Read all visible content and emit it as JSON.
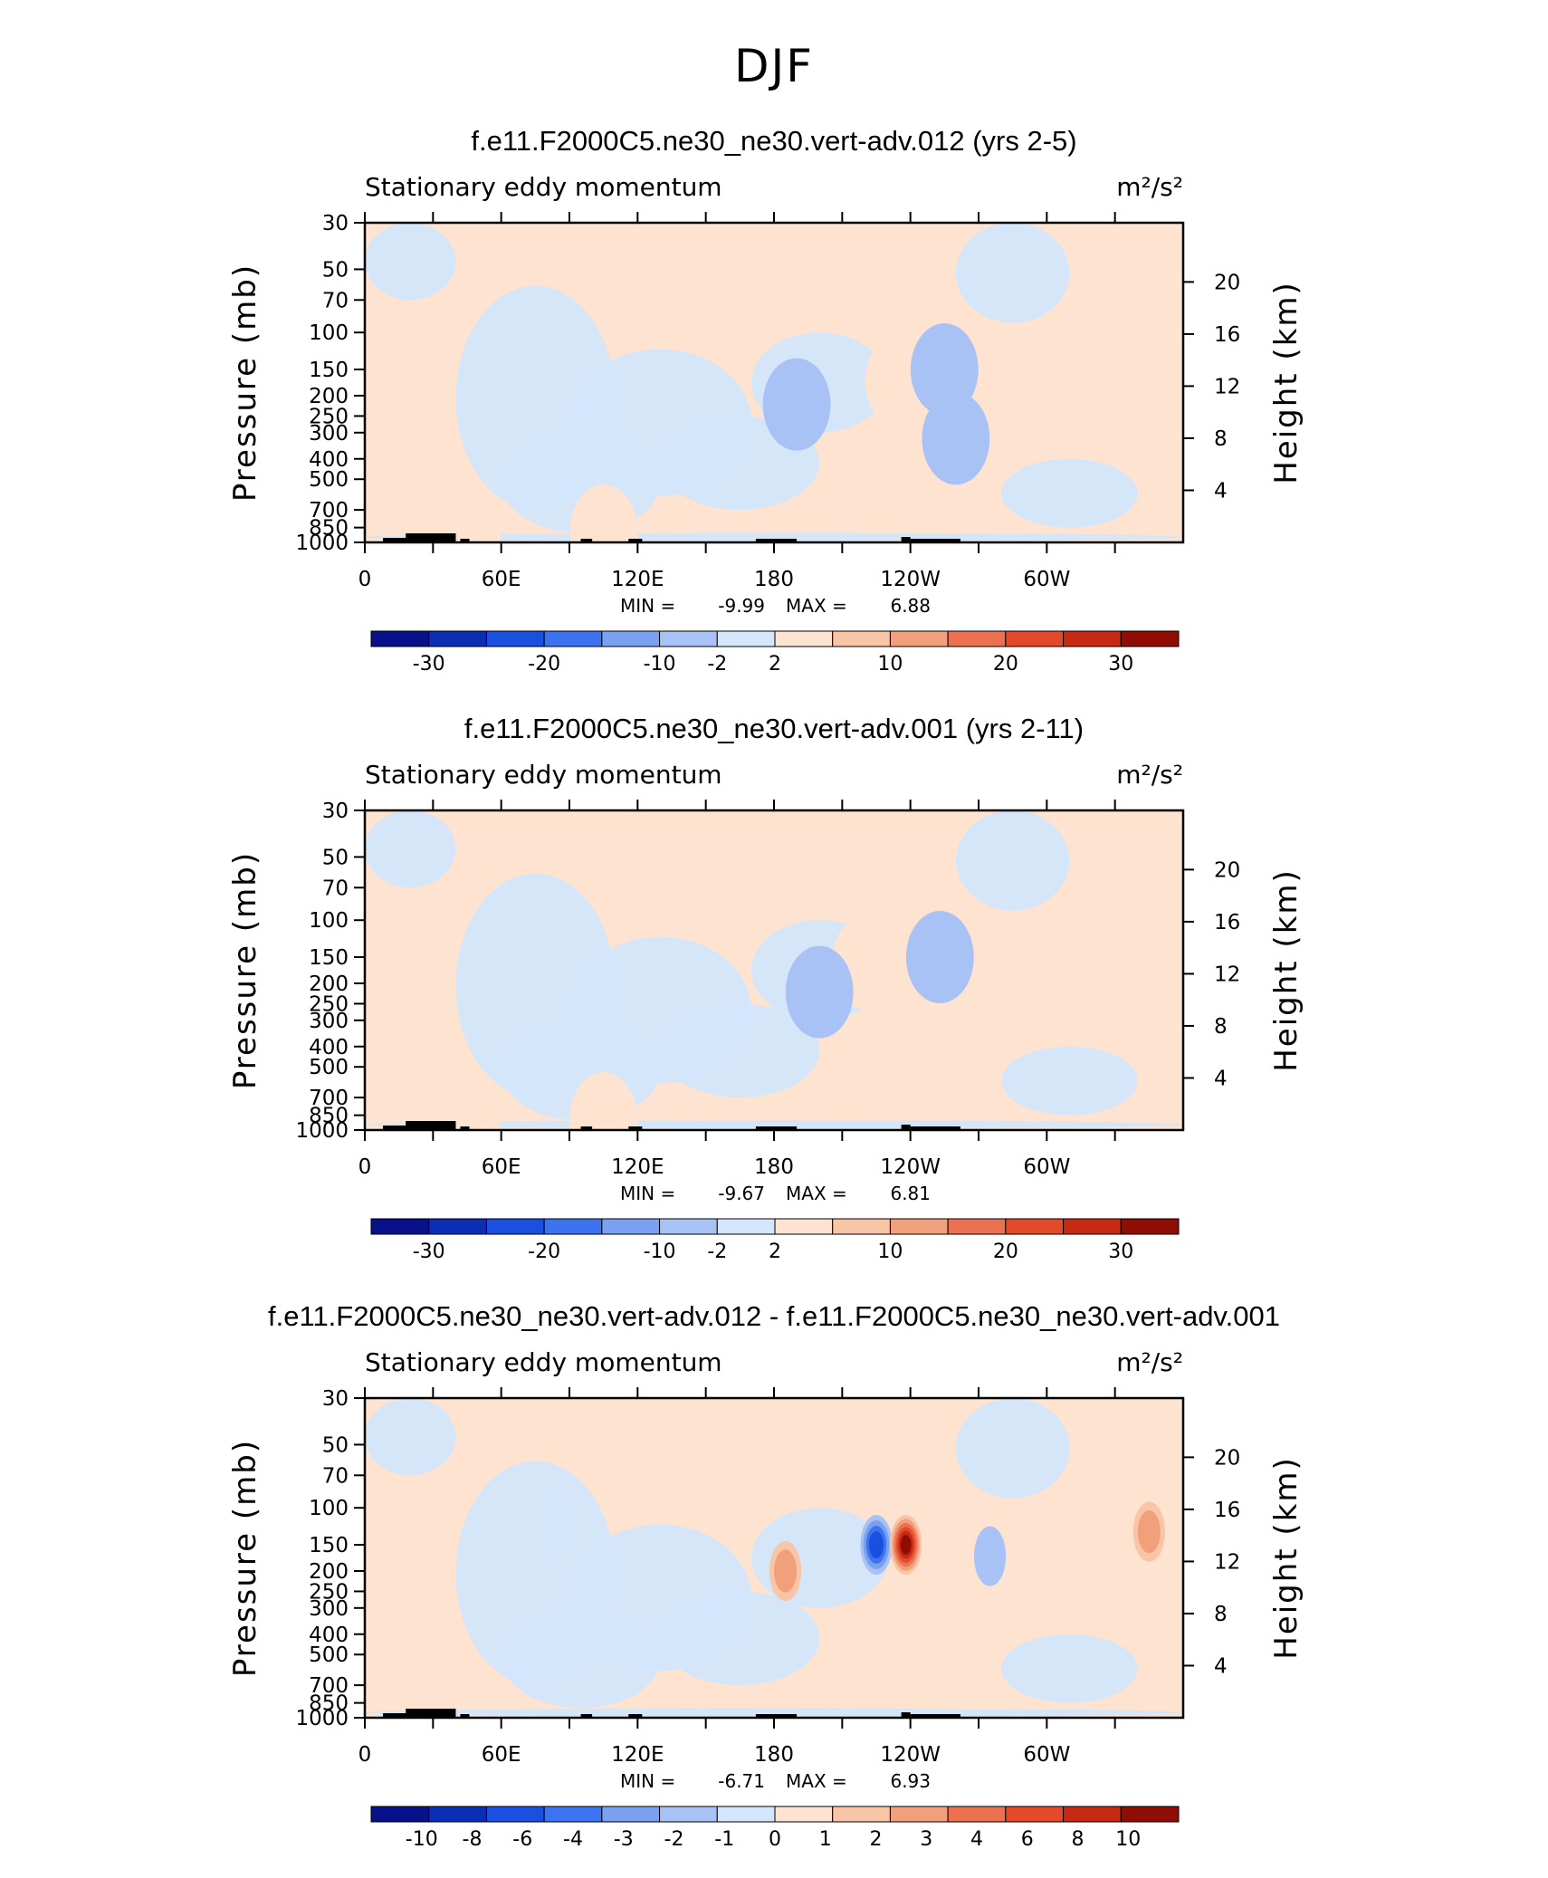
{
  "figure": {
    "main_title": "DJF"
  },
  "chart_data": [
    {
      "type": "heatmap",
      "title": "f.e11.F2000C5.ne30_ne30.vert-adv.012 (yrs 2-5)",
      "subtitle_left": "Stationary eddy momentum",
      "units": "m²/s²",
      "ylabel": "Pressure (mb)",
      "y2label": "Height (km)",
      "x_ticks": [
        "0",
        "60E",
        "120E",
        "180",
        "120W",
        "60W"
      ],
      "y_ticks": [
        "30",
        "50",
        "70",
        "100",
        "150",
        "200",
        "250",
        "300",
        "400",
        "500",
        "700",
        "850",
        "1000"
      ],
      "y2_ticks": [
        "20",
        "16",
        "12",
        "8",
        "4"
      ],
      "stats": {
        "min_label": "MIN =",
        "min": "-9.99",
        "max_label": "MAX =",
        "max": "6.88"
      },
      "colorbar_levels": [
        "-30",
        "-20",
        "-10",
        "-2",
        "2",
        "10",
        "20",
        "30"
      ],
      "features": [
        {
          "lon": 15,
          "p": 180,
          "value": 5
        },
        {
          "lon": 235,
          "p": 170,
          "value": 4
        },
        {
          "lon": 255,
          "p": 150,
          "value": -9
        },
        {
          "lon": 345,
          "p": 160,
          "value": 3
        },
        {
          "lon": 260,
          "p": 320,
          "value": -2
        },
        {
          "lon": 190,
          "p": 220,
          "value": -2
        },
        {
          "lon": 45,
          "p": 850,
          "value": 3
        },
        {
          "lon": 105,
          "p": 880,
          "value": 3
        }
      ]
    },
    {
      "type": "heatmap",
      "title": "f.e11.F2000C5.ne30_ne30.vert-adv.001 (yrs 2-11)",
      "subtitle_left": "Stationary eddy momentum",
      "units": "m²/s²",
      "ylabel": "Pressure (mb)",
      "y2label": "Height (km)",
      "x_ticks": [
        "0",
        "60E",
        "120E",
        "180",
        "120W",
        "60W"
      ],
      "y_ticks": [
        "30",
        "50",
        "70",
        "100",
        "150",
        "200",
        "250",
        "300",
        "400",
        "500",
        "700",
        "850",
        "1000"
      ],
      "y2_ticks": [
        "20",
        "16",
        "12",
        "8",
        "4"
      ],
      "stats": {
        "min_label": "MIN =",
        "min": "-9.67",
        "max_label": "MAX =",
        "max": "6.81"
      },
      "colorbar_levels": [
        "-30",
        "-20",
        "-10",
        "-2",
        "2",
        "10",
        "20",
        "30"
      ],
      "features": [
        {
          "lon": 12,
          "p": 190,
          "value": 5
        },
        {
          "lon": 220,
          "p": 160,
          "value": 4
        },
        {
          "lon": 253,
          "p": 150,
          "value": -8
        },
        {
          "lon": 345,
          "p": 130,
          "value": 3
        },
        {
          "lon": 200,
          "p": 220,
          "value": -3
        },
        {
          "lon": 45,
          "p": 820,
          "value": 3
        },
        {
          "lon": 105,
          "p": 880,
          "value": 3
        }
      ]
    },
    {
      "type": "heatmap",
      "title": "f.e11.F2000C5.ne30_ne30.vert-adv.012 - f.e11.F2000C5.ne30_ne30.vert-adv.001",
      "subtitle_left": "Stationary eddy momentum",
      "units": "m²/s²",
      "ylabel": "Pressure (mb)",
      "y2label": "Height (km)",
      "x_ticks": [
        "0",
        "60E",
        "120E",
        "180",
        "120W",
        "60W"
      ],
      "y_ticks": [
        "30",
        "50",
        "70",
        "100",
        "150",
        "200",
        "250",
        "300",
        "400",
        "500",
        "700",
        "850",
        "1000"
      ],
      "y2_ticks": [
        "20",
        "16",
        "12",
        "8",
        "4"
      ],
      "stats": {
        "min_label": "MIN =",
        "min": "-6.71",
        "max_label": "MAX =",
        "max": "6.93"
      },
      "colorbar_levels": [
        "-10",
        "-8",
        "-6",
        "-4",
        "-3",
        "-2",
        "-1",
        "0",
        "1",
        "2",
        "3",
        "4",
        "6",
        "8",
        "10"
      ],
      "features": [
        {
          "lon": 225,
          "p": 150,
          "value": -6.7
        },
        {
          "lon": 238,
          "p": 150,
          "value": 6.9
        },
        {
          "lon": 185,
          "p": 200,
          "value": 1.5
        },
        {
          "lon": 275,
          "p": 170,
          "value": -2
        },
        {
          "lon": 345,
          "p": 130,
          "value": 1.5
        },
        {
          "lon": 85,
          "p": 120,
          "value": -1
        }
      ]
    }
  ]
}
